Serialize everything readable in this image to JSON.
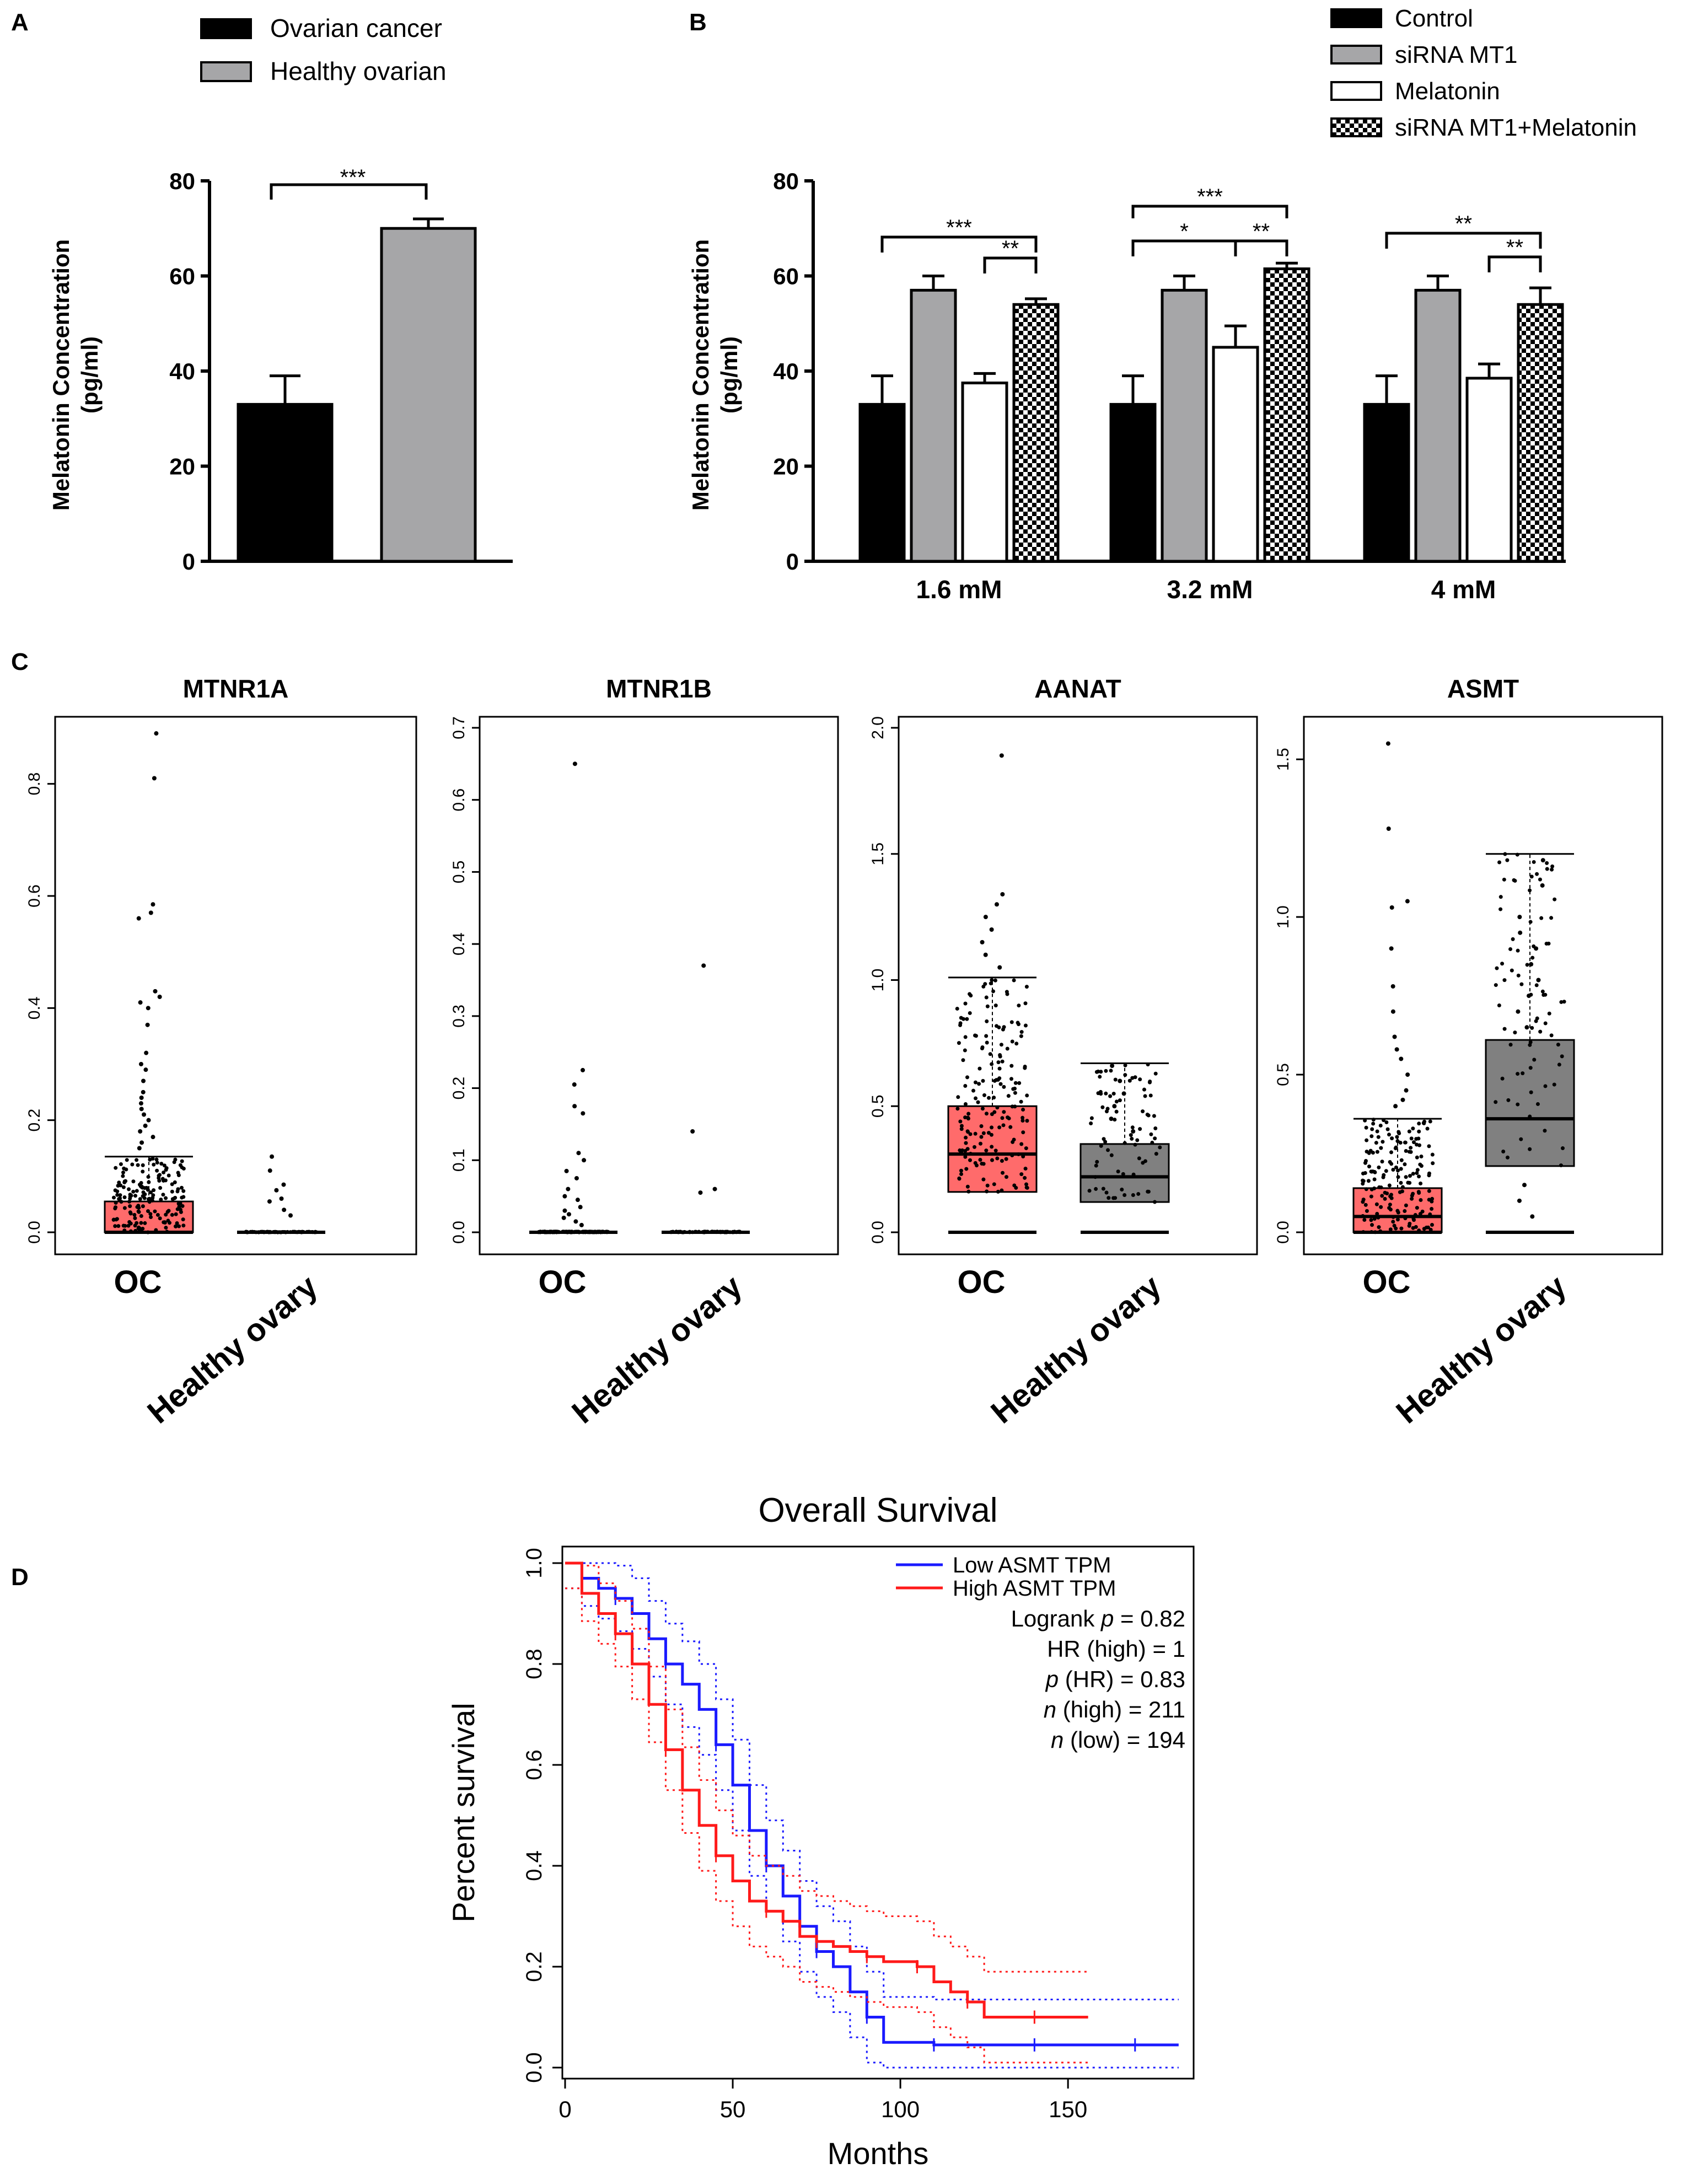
{
  "chart_data": [
    {
      "panel": "A",
      "type": "bar",
      "categories": [
        "Ovarian cancer",
        "Healthy ovarian"
      ],
      "values": [
        33,
        70
      ],
      "errors": [
        6,
        2
      ],
      "colors": [
        "#000000",
        "#a6a6a8"
      ],
      "ylabel_line1": "Melatonin Concentration",
      "ylabel_line2": "(pg/ml)",
      "ylim": [
        0,
        80
      ],
      "yticks": [
        "0",
        "20",
        "40",
        "60",
        "80"
      ],
      "legend": [
        "Ovarian cancer",
        "Healthy ovarian"
      ],
      "significance": "***"
    },
    {
      "panel": "B",
      "type": "bar",
      "categories": [
        "1.6 mM",
        "3.2 mM",
        "4 mM"
      ],
      "series": [
        {
          "name": "Control",
          "values": [
            33,
            33,
            33
          ],
          "errors": [
            6,
            6,
            6
          ]
        },
        {
          "name": "siRNA MT1",
          "values": [
            57,
            57,
            57
          ],
          "errors": [
            3,
            3,
            3
          ]
        },
        {
          "name": "Melatonin",
          "values": [
            37.5,
            45,
            38.5
          ],
          "errors": [
            2,
            4.5,
            3
          ]
        },
        {
          "name": "siRNA MT1+Melatonin",
          "values": [
            54,
            61.5,
            54
          ],
          "errors": [
            1.2,
            1.2,
            3.5
          ]
        }
      ],
      "ylabel_line1": "Melatonin Concentration",
      "ylabel_line2": "(pg/ml)",
      "ylim": [
        0,
        80
      ],
      "yticks": [
        "0",
        "20",
        "40",
        "60",
        "80"
      ],
      "significance": [
        {
          "group": "1.6 mM",
          "label": "***"
        },
        {
          "group": "1.6 mM",
          "label": "**"
        },
        {
          "group": "3.2 mM",
          "label": "***"
        },
        {
          "group": "3.2 mM",
          "label": "*"
        },
        {
          "group": "3.2 mM",
          "label": "**"
        },
        {
          "group": "4 mM",
          "label": "**"
        },
        {
          "group": "4 mM",
          "label": "**"
        }
      ]
    },
    {
      "panel": "C",
      "type": "box",
      "categories": [
        "OC",
        "Healthy ovary"
      ],
      "plots": [
        {
          "title": "MTNR1A",
          "ylim": [
            0,
            0.9
          ],
          "yticks": [
            "0.0",
            "0.2",
            "0.4",
            "0.6",
            "0.8"
          ],
          "ytick_values": [
            0,
            0.2,
            0.4,
            0.6,
            0.8
          ],
          "oc": {
            "q1": 0,
            "median": 0,
            "q3": 0.055,
            "whisker_high": 0.135
          },
          "healthy": {
            "q1": 0,
            "median": 0,
            "q3": 0,
            "whisker_high": 0
          },
          "oc_outliers": [
            0.89,
            0.81,
            0.585,
            0.57,
            0.56,
            0.43,
            0.42,
            0.41,
            0.4,
            0.37,
            0.32,
            0.3,
            0.29,
            0.27,
            0.25,
            0.24,
            0.23,
            0.22,
            0.21,
            0.2,
            0.19,
            0.18,
            0.17,
            0.16,
            0.15
          ],
          "healthy_points": [
            0.135,
            0.11,
            0.085,
            0.075,
            0.06,
            0.055,
            0.04,
            0.03
          ]
        },
        {
          "title": "MTNR1B",
          "ylim": [
            0,
            0.7
          ],
          "yticks": [
            "0.0",
            "0.1",
            "0.2",
            "0.3",
            "0.4",
            "0.5",
            "0.6",
            "0.7"
          ],
          "ytick_values": [
            0,
            0.1,
            0.2,
            0.3,
            0.4,
            0.5,
            0.6,
            0.7
          ],
          "oc": {
            "q1": 0,
            "median": 0,
            "q3": 0,
            "whisker_high": 0
          },
          "healthy": {
            "q1": 0,
            "median": 0,
            "q3": 0,
            "whisker_high": 0
          },
          "oc_outliers": [
            0.65,
            0.225,
            0.205,
            0.175,
            0.165,
            0.11,
            0.1,
            0.085,
            0.075,
            0.06,
            0.05,
            0.045,
            0.035,
            0.03,
            0.025,
            0.02,
            0.015,
            0.01
          ],
          "healthy_points": [
            0.37,
            0.14,
            0.06,
            0.055
          ]
        },
        {
          "title": "AANAT",
          "ylim": [
            0,
            2.0
          ],
          "yticks": [
            "0.0",
            "0.5",
            "1.0",
            "1.5",
            "2.0"
          ],
          "ytick_values": [
            0,
            0.5,
            1.0,
            1.5,
            2.0
          ],
          "oc": {
            "q1": 0.16,
            "median": 0.31,
            "q3": 0.5,
            "whisker_high": 1.01
          },
          "healthy": {
            "q1": 0.12,
            "median": 0.22,
            "q3": 0.35,
            "whisker_high": 0.67
          },
          "oc_outliers": [
            1.89,
            1.34,
            1.3,
            1.25,
            1.2,
            1.15,
            1.1,
            1.05
          ],
          "healthy_points": [
            0.66,
            0.6,
            0.55,
            0.5,
            0.45,
            0.4
          ]
        },
        {
          "title": "ASMT",
          "ylim": [
            0,
            1.6
          ],
          "yticks": [
            "0.0",
            "0.5",
            "1.0",
            "1.5"
          ],
          "ytick_values": [
            0,
            0.5,
            1.0,
            1.5
          ],
          "oc": {
            "q1": 0,
            "median": 0.05,
            "q3": 0.14,
            "whisker_high": 0.36
          },
          "healthy": {
            "q1": 0.21,
            "median": 0.36,
            "q3": 0.61,
            "whisker_high": 1.2
          },
          "oc_outliers": [
            1.55,
            1.28,
            1.05,
            1.03,
            0.9,
            0.78,
            0.7,
            0.62,
            0.58,
            0.55,
            0.5,
            0.45,
            0.42,
            0.4
          ],
          "healthy_points": [
            1.18,
            1.1,
            1.0,
            0.95,
            0.9,
            0.85,
            0.8,
            0.75,
            0.7,
            0.65,
            0.05,
            0.1,
            0.15
          ]
        }
      ],
      "colors": {
        "oc": "#ff6b6b",
        "healthy": "#808080"
      }
    },
    {
      "panel": "D",
      "type": "line",
      "title": "Overall Survival",
      "xlabel": "Months",
      "ylabel": "Percent survival",
      "xlim": [
        0,
        185
      ],
      "ylim": [
        0,
        1.0
      ],
      "xticks": [
        "0",
        "50",
        "100",
        "150"
      ],
      "yticks": [
        "0.0",
        "0.2",
        "0.4",
        "0.6",
        "0.8",
        "1.0"
      ],
      "series": [
        {
          "name": "Low ASMT TPM",
          "color": "#1a1aff",
          "x": [
            0,
            5,
            10,
            15,
            20,
            25,
            30,
            35,
            40,
            45,
            50,
            55,
            60,
            65,
            70,
            75,
            80,
            85,
            90,
            95,
            100,
            110,
            120,
            130,
            140,
            150,
            160,
            170,
            183
          ],
          "y": [
            1.0,
            0.97,
            0.95,
            0.93,
            0.9,
            0.85,
            0.8,
            0.76,
            0.71,
            0.64,
            0.56,
            0.47,
            0.4,
            0.34,
            0.28,
            0.23,
            0.2,
            0.15,
            0.1,
            0.05,
            0.05,
            0.045,
            0.045,
            0.045,
            0.045,
            0.045,
            0.045,
            0.045,
            0.045
          ]
        },
        {
          "name": "High ASMT TPM",
          "color": "#ff1a1a",
          "x": [
            0,
            5,
            10,
            15,
            20,
            25,
            30,
            35,
            40,
            45,
            50,
            55,
            60,
            65,
            70,
            75,
            80,
            85,
            90,
            95,
            100,
            105,
            110,
            115,
            120,
            125,
            130,
            140,
            150,
            156
          ],
          "y": [
            1.0,
            0.94,
            0.9,
            0.86,
            0.8,
            0.72,
            0.63,
            0.55,
            0.48,
            0.42,
            0.37,
            0.33,
            0.31,
            0.29,
            0.26,
            0.25,
            0.24,
            0.23,
            0.22,
            0.21,
            0.21,
            0.2,
            0.17,
            0.15,
            0.13,
            0.1,
            0.1,
            0.1,
            0.1,
            0.1
          ]
        }
      ],
      "annotations": [
        {
          "prefix": "Logrank ",
          "ital": "p",
          "rest": " = 0.82"
        },
        {
          "prefix": "HR (high) = 1",
          "ital": "",
          "rest": ""
        },
        {
          "prefix": "",
          "ital": "p",
          "rest": " (HR) = 0.83"
        },
        {
          "prefix": "",
          "ital": "n",
          "rest": " (high) = 211"
        },
        {
          "prefix": "",
          "ital": "n",
          "rest": " (low) = 194"
        }
      ]
    }
  ],
  "panels": {
    "a": "A",
    "b": "B",
    "c": "C",
    "d": "D"
  },
  "legend_b": [
    "Control",
    "siRNA MT1",
    "Melatonin",
    "siRNA MT1+Melatonin"
  ]
}
